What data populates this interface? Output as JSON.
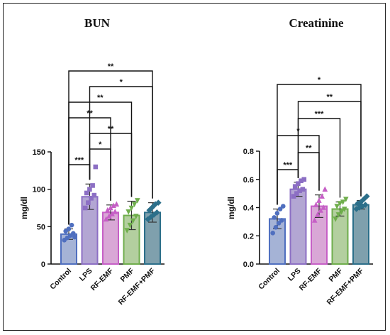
{
  "chart_data": [
    {
      "type": "bar",
      "title": "BUN",
      "xlabel": "",
      "ylabel": "mg/dl",
      "ylim": [
        0,
        150
      ],
      "yticks": [
        "0",
        "50",
        "100",
        "150"
      ],
      "categories": [
        "Control",
        "LPS",
        "RF-EMF",
        "PMF",
        "RF-EMF+PMF"
      ],
      "values": [
        40,
        90,
        69,
        65,
        69
      ],
      "errors": [
        7,
        17,
        10,
        19,
        13
      ],
      "colors": [
        "#4f6fbf",
        "#8c6fc4",
        "#c65fc6",
        "#6fae4c",
        "#2c6f8a"
      ],
      "fills": [
        "#a5b3d6",
        "#b3a6d3",
        "#d9a7d6",
        "#b3cf9f",
        "#7fa0ad"
      ],
      "points": [
        [
          32,
          35,
          38,
          41,
          44,
          47,
          52,
          36
        ],
        [
          75,
          82,
          88,
          92,
          95,
          100,
          105,
          130
        ],
        [
          60,
          64,
          67,
          70,
          72,
          75,
          78,
          80
        ],
        [
          45,
          52,
          58,
          64,
          70,
          75,
          80,
          85
        ],
        [
          60,
          63,
          66,
          69,
          72,
          76,
          80,
          82
        ]
      ],
      "significance": [
        {
          "from": 0,
          "to": 1,
          "label": "***"
        },
        {
          "from": 1,
          "to": 2,
          "label": "*"
        },
        {
          "from": 1,
          "to": 3,
          "label": "**"
        },
        {
          "from": 0,
          "to": 2,
          "label": "**"
        },
        {
          "from": 0,
          "to": 3,
          "label": "**"
        },
        {
          "from": 1,
          "to": 4,
          "label": "*"
        },
        {
          "from": 0,
          "to": 4,
          "label": "**"
        }
      ]
    },
    {
      "type": "bar",
      "title": "Creatinine",
      "xlabel": "",
      "ylabel": "mg/dl",
      "ylim": [
        0,
        0.8
      ],
      "yticks": [
        "0.0",
        "0.2",
        "0.4",
        "0.6",
        "0.8"
      ],
      "categories": [
        "Control",
        "LPS",
        "RF-EMF",
        "PMF",
        "RF-EMF+PMF"
      ],
      "values": [
        0.32,
        0.53,
        0.41,
        0.39,
        0.42
      ],
      "errors": [
        0.07,
        0.05,
        0.08,
        0.05,
        0.03
      ],
      "colors": [
        "#4f6fbf",
        "#8c6fc4",
        "#c65fc6",
        "#6fae4c",
        "#2c6f8a"
      ],
      "fills": [
        "#a5b3d6",
        "#b3a6d3",
        "#d9a7d6",
        "#b3cf9f",
        "#7fa0ad"
      ],
      "points": [
        [
          0.22,
          0.26,
          0.29,
          0.31,
          0.33,
          0.36,
          0.39,
          0.41
        ],
        [
          0.48,
          0.5,
          0.52,
          0.53,
          0.55,
          0.57,
          0.59,
          0.6
        ],
        [
          0.31,
          0.35,
          0.38,
          0.4,
          0.42,
          0.45,
          0.48,
          0.53
        ],
        [
          0.32,
          0.35,
          0.37,
          0.39,
          0.41,
          0.43,
          0.44,
          0.46
        ],
        [
          0.39,
          0.4,
          0.41,
          0.42,
          0.43,
          0.44,
          0.46,
          0.48
        ]
      ],
      "significance": [
        {
          "from": 0,
          "to": 1,
          "label": "***"
        },
        {
          "from": 1,
          "to": 2,
          "label": "**"
        },
        {
          "from": 0,
          "to": 2,
          "label": "*"
        },
        {
          "from": 1,
          "to": 3,
          "label": "***"
        },
        {
          "from": 1,
          "to": 4,
          "label": "**"
        },
        {
          "from": 0,
          "to": 4,
          "label": "*"
        }
      ]
    }
  ]
}
